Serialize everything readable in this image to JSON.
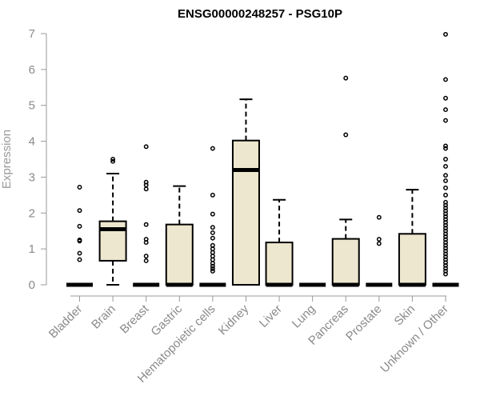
{
  "chart_data": {
    "type": "boxplot",
    "title": "ENSG00000248257 - PSG10P",
    "xlabel": "",
    "ylabel": "Expression",
    "ylim": [
      0,
      7
    ],
    "yticks": [
      0,
      1,
      2,
      3,
      4,
      5,
      6,
      7
    ],
    "box_fill": "#ede7cf",
    "categories": [
      "Bladder",
      "Brain",
      "Breast",
      "Gastric",
      "Hematopoietic cells",
      "Kidney",
      "Liver",
      "Lung",
      "Pancreas",
      "Prostate",
      "Skin",
      "Unknown / Other"
    ],
    "series": [
      {
        "q1": 0,
        "median": 0,
        "q3": 0,
        "whisker_low": 0,
        "whisker_high": 0,
        "outliers": [
          0.7,
          0.88,
          1.22,
          1.25,
          1.63,
          2.07,
          2.72
        ]
      },
      {
        "q1": 0.67,
        "median": 1.55,
        "q3": 1.77,
        "whisker_low": 0,
        "whisker_high": 3.1,
        "outliers": [
          3.44,
          3.5
        ]
      },
      {
        "q1": 0,
        "median": 0,
        "q3": 0,
        "whisker_low": 0,
        "whisker_high": 0,
        "outliers": [
          0.67,
          0.8,
          1.18,
          1.27,
          1.68,
          2.67,
          2.78,
          2.86,
          3.85
        ]
      },
      {
        "q1": 0,
        "median": 0,
        "q3": 1.68,
        "whisker_low": 0,
        "whisker_high": 2.75,
        "outliers": []
      },
      {
        "q1": 0,
        "median": 0,
        "q3": 0,
        "whisker_low": 0,
        "whisker_high": 0,
        "outliers": [
          0.38,
          0.45,
          0.52,
          0.6,
          0.7,
          0.8,
          0.9,
          1.0,
          1.1,
          1.3,
          1.45,
          1.6,
          1.97,
          2.5,
          3.8
        ]
      },
      {
        "q1": 0,
        "median": 3.2,
        "q3": 4.02,
        "whisker_low": 0,
        "whisker_high": 5.17,
        "outliers": []
      },
      {
        "q1": 0,
        "median": 0,
        "q3": 1.18,
        "whisker_low": 0,
        "whisker_high": 2.37,
        "outliers": []
      },
      {
        "q1": 0,
        "median": 0,
        "q3": 0,
        "whisker_low": 0,
        "whisker_high": 0,
        "outliers": []
      },
      {
        "q1": 0,
        "median": 0,
        "q3": 1.28,
        "whisker_low": 0,
        "whisker_high": 1.82,
        "outliers": [
          4.18,
          5.76
        ]
      },
      {
        "q1": 0,
        "median": 0,
        "q3": 0,
        "whisker_low": 0,
        "whisker_high": 0,
        "outliers": [
          1.15,
          1.27,
          1.88
        ]
      },
      {
        "q1": 0,
        "median": 0,
        "q3": 1.42,
        "whisker_low": 0,
        "whisker_high": 2.65,
        "outliers": []
      },
      {
        "q1": 0,
        "median": 0,
        "q3": 0,
        "whisker_low": 0,
        "whisker_high": 0,
        "outliers": [
          0.3,
          0.38,
          0.46,
          0.54,
          0.62,
          0.7,
          0.78,
          0.86,
          0.94,
          1.02,
          1.1,
          1.18,
          1.26,
          1.34,
          1.42,
          1.5,
          1.58,
          1.66,
          1.74,
          1.82,
          1.9,
          1.98,
          2.06,
          2.14,
          2.22,
          2.3,
          2.5,
          2.7,
          2.9,
          3.05,
          3.3,
          3.5,
          3.8,
          3.87,
          4.58,
          4.88,
          5.2,
          5.72,
          6.98
        ]
      }
    ]
  }
}
